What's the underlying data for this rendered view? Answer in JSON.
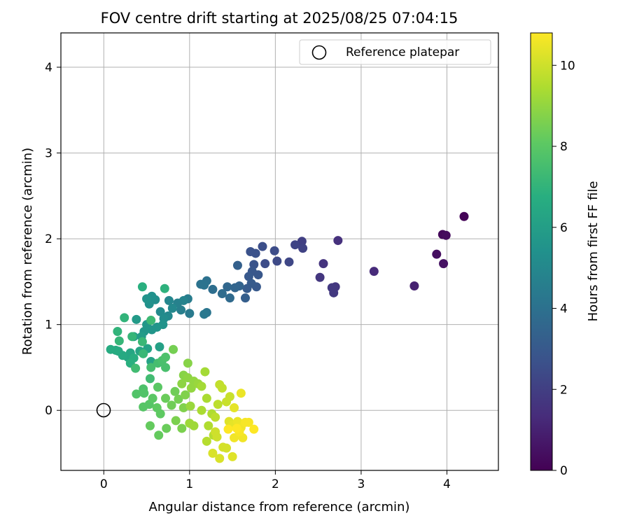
{
  "chart_data": {
    "type": "scatter",
    "title": "FOV centre drift starting at 2025/08/25 07:04:15",
    "xlabel": "Angular distance from reference (arcmin)",
    "ylabel": "Rotation from reference (arcmin)",
    "xlim": [
      -0.5,
      4.6
    ],
    "ylim": [
      -0.7,
      4.4
    ],
    "xticks": [
      "0",
      "1",
      "2",
      "3",
      "4"
    ],
    "yticks": [
      "0",
      "1",
      "2",
      "3",
      "4"
    ],
    "grid": true,
    "legend": {
      "placement": "top-right",
      "entries": [
        "Reference platepar"
      ]
    },
    "reference_point": {
      "x": 0,
      "y": 0,
      "marker": "open-circle"
    },
    "colorbar": {
      "label": "Hours from first FF file",
      "colormap": "viridis",
      "range": [
        0,
        10.8
      ],
      "ticks": [
        "0",
        "2",
        "4",
        "6",
        "8",
        "10"
      ]
    },
    "points": [
      {
        "x": 4.2,
        "y": 2.26,
        "c": 0.1
      },
      {
        "x": 3.95,
        "y": 2.05,
        "c": 0.2
      },
      {
        "x": 3.99,
        "y": 2.04,
        "c": 0.3
      },
      {
        "x": 3.88,
        "y": 1.82,
        "c": 0.4
      },
      {
        "x": 3.96,
        "y": 1.71,
        "c": 0.5
      },
      {
        "x": 3.62,
        "y": 1.45,
        "c": 1.0
      },
      {
        "x": 3.15,
        "y": 1.62,
        "c": 1.3
      },
      {
        "x": 2.73,
        "y": 1.98,
        "c": 1.5
      },
      {
        "x": 2.56,
        "y": 1.71,
        "c": 1.6
      },
      {
        "x": 2.52,
        "y": 1.55,
        "c": 1.7
      },
      {
        "x": 2.7,
        "y": 1.44,
        "c": 1.7
      },
      {
        "x": 2.66,
        "y": 1.43,
        "c": 1.8
      },
      {
        "x": 2.68,
        "y": 1.37,
        "c": 1.8
      },
      {
        "x": 2.31,
        "y": 1.97,
        "c": 2.0
      },
      {
        "x": 2.32,
        "y": 1.89,
        "c": 2.1
      },
      {
        "x": 2.23,
        "y": 1.93,
        "c": 2.2
      },
      {
        "x": 2.16,
        "y": 1.73,
        "c": 2.3
      },
      {
        "x": 2.02,
        "y": 1.74,
        "c": 2.4
      },
      {
        "x": 1.99,
        "y": 1.86,
        "c": 2.5
      },
      {
        "x": 1.88,
        "y": 1.71,
        "c": 2.5
      },
      {
        "x": 1.85,
        "y": 1.91,
        "c": 2.6
      },
      {
        "x": 1.77,
        "y": 1.83,
        "c": 2.7
      },
      {
        "x": 1.71,
        "y": 1.85,
        "c": 2.7
      },
      {
        "x": 1.75,
        "y": 1.7,
        "c": 2.8
      },
      {
        "x": 1.8,
        "y": 1.58,
        "c": 2.9
      },
      {
        "x": 1.73,
        "y": 1.62,
        "c": 2.9
      },
      {
        "x": 1.69,
        "y": 1.56,
        "c": 3.0
      },
      {
        "x": 1.78,
        "y": 1.44,
        "c": 3.0
      },
      {
        "x": 1.72,
        "y": 1.48,
        "c": 3.1
      },
      {
        "x": 1.67,
        "y": 1.42,
        "c": 3.1
      },
      {
        "x": 1.65,
        "y": 1.31,
        "c": 3.2
      },
      {
        "x": 1.56,
        "y": 1.69,
        "c": 3.3
      },
      {
        "x": 1.58,
        "y": 1.45,
        "c": 3.4
      },
      {
        "x": 1.53,
        "y": 1.43,
        "c": 3.5
      },
      {
        "x": 1.44,
        "y": 1.44,
        "c": 3.6
      },
      {
        "x": 1.47,
        "y": 1.31,
        "c": 3.7
      },
      {
        "x": 1.38,
        "y": 1.36,
        "c": 3.8
      },
      {
        "x": 1.27,
        "y": 1.41,
        "c": 3.9
      },
      {
        "x": 1.2,
        "y": 1.51,
        "c": 4.0
      },
      {
        "x": 1.13,
        "y": 1.47,
        "c": 4.1
      },
      {
        "x": 1.17,
        "y": 1.46,
        "c": 4.1
      },
      {
        "x": 1.2,
        "y": 1.14,
        "c": 4.2
      },
      {
        "x": 1.17,
        "y": 1.12,
        "c": 4.3
      },
      {
        "x": 1.0,
        "y": 1.13,
        "c": 4.4
      },
      {
        "x": 0.98,
        "y": 1.3,
        "c": 4.5
      },
      {
        "x": 0.9,
        "y": 1.17,
        "c": 4.6
      },
      {
        "x": 0.86,
        "y": 1.25,
        "c": 4.7
      },
      {
        "x": 0.93,
        "y": 1.28,
        "c": 4.8
      },
      {
        "x": 0.76,
        "y": 1.28,
        "c": 4.9
      },
      {
        "x": 0.8,
        "y": 1.19,
        "c": 5.0
      },
      {
        "x": 0.75,
        "y": 1.1,
        "c": 5.0
      },
      {
        "x": 0.66,
        "y": 1.15,
        "c": 5.1
      },
      {
        "x": 0.7,
        "y": 1.07,
        "c": 5.2
      },
      {
        "x": 0.6,
        "y": 1.29,
        "c": 5.3
      },
      {
        "x": 0.53,
        "y": 1.24,
        "c": 5.4
      },
      {
        "x": 0.56,
        "y": 1.33,
        "c": 5.4
      },
      {
        "x": 0.5,
        "y": 1.3,
        "c": 5.5
      },
      {
        "x": 0.69,
        "y": 1.0,
        "c": 5.5
      },
      {
        "x": 0.62,
        "y": 0.97,
        "c": 5.6
      },
      {
        "x": 0.56,
        "y": 0.94,
        "c": 5.6
      },
      {
        "x": 0.5,
        "y": 1.0,
        "c": 5.7
      },
      {
        "x": 0.47,
        "y": 0.92,
        "c": 5.7
      },
      {
        "x": 0.38,
        "y": 1.06,
        "c": 5.8
      },
      {
        "x": 0.44,
        "y": 0.86,
        "c": 5.9
      },
      {
        "x": 0.35,
        "y": 0.86,
        "c": 6.0
      },
      {
        "x": 0.65,
        "y": 0.74,
        "c": 6.1
      },
      {
        "x": 0.55,
        "y": 0.57,
        "c": 6.2
      },
      {
        "x": 0.51,
        "y": 0.72,
        "c": 6.2
      },
      {
        "x": 0.42,
        "y": 0.69,
        "c": 6.3
      },
      {
        "x": 0.31,
        "y": 0.67,
        "c": 6.4
      },
      {
        "x": 0.28,
        "y": 0.62,
        "c": 6.4
      },
      {
        "x": 0.22,
        "y": 0.64,
        "c": 6.5
      },
      {
        "x": 0.17,
        "y": 0.69,
        "c": 6.5
      },
      {
        "x": 0.14,
        "y": 0.7,
        "c": 6.6
      },
      {
        "x": 0.08,
        "y": 0.71,
        "c": 6.6
      },
      {
        "x": 0.35,
        "y": 0.61,
        "c": 6.7
      },
      {
        "x": 0.31,
        "y": 0.55,
        "c": 6.8
      },
      {
        "x": 0.45,
        "y": 1.44,
        "c": 6.8
      },
      {
        "x": 0.71,
        "y": 1.42,
        "c": 6.9
      },
      {
        "x": 0.24,
        "y": 1.08,
        "c": 7.0
      },
      {
        "x": 0.16,
        "y": 0.92,
        "c": 7.0
      },
      {
        "x": 0.18,
        "y": 0.81,
        "c": 7.1
      },
      {
        "x": 0.33,
        "y": 0.86,
        "c": 7.1
      },
      {
        "x": 0.45,
        "y": 0.8,
        "c": 7.2
      },
      {
        "x": 0.46,
        "y": 0.66,
        "c": 7.2
      },
      {
        "x": 0.55,
        "y": 1.05,
        "c": 7.3
      },
      {
        "x": 0.37,
        "y": 0.49,
        "c": 7.4
      },
      {
        "x": 0.54,
        "y": 0.37,
        "c": 7.4
      },
      {
        "x": 0.55,
        "y": 0.5,
        "c": 7.5
      },
      {
        "x": 0.63,
        "y": 0.55,
        "c": 7.5
      },
      {
        "x": 0.68,
        "y": 0.58,
        "c": 7.6
      },
      {
        "x": 0.72,
        "y": 0.5,
        "c": 7.6
      },
      {
        "x": 0.72,
        "y": 0.62,
        "c": 7.7
      },
      {
        "x": 0.46,
        "y": 0.25,
        "c": 7.7
      },
      {
        "x": 0.38,
        "y": 0.19,
        "c": 7.8
      },
      {
        "x": 0.47,
        "y": 0.2,
        "c": 7.8
      },
      {
        "x": 0.46,
        "y": 0.04,
        "c": 7.9
      },
      {
        "x": 0.53,
        "y": 0.07,
        "c": 7.9
      },
      {
        "x": 0.63,
        "y": 0.27,
        "c": 8.0
      },
      {
        "x": 0.57,
        "y": 0.14,
        "c": 8.0
      },
      {
        "x": 0.62,
        "y": 0.03,
        "c": 8.1
      },
      {
        "x": 0.66,
        "y": -0.04,
        "c": 8.1
      },
      {
        "x": 0.54,
        "y": -0.18,
        "c": 8.2
      },
      {
        "x": 0.64,
        "y": -0.29,
        "c": 8.2
      },
      {
        "x": 0.73,
        "y": -0.21,
        "c": 8.3
      },
      {
        "x": 0.72,
        "y": 0.14,
        "c": 8.3
      },
      {
        "x": 0.79,
        "y": 0.06,
        "c": 8.4
      },
      {
        "x": 0.83,
        "y": 0.22,
        "c": 8.4
      },
      {
        "x": 0.87,
        "y": 0.13,
        "c": 8.5
      },
      {
        "x": 0.81,
        "y": 0.71,
        "c": 8.5
      },
      {
        "x": 0.84,
        "y": -0.12,
        "c": 8.6
      },
      {
        "x": 0.91,
        "y": -0.21,
        "c": 8.6
      },
      {
        "x": 0.93,
        "y": 0.03,
        "c": 8.7
      },
      {
        "x": 0.95,
        "y": 0.18,
        "c": 8.7
      },
      {
        "x": 0.98,
        "y": 0.55,
        "c": 8.8
      },
      {
        "x": 0.93,
        "y": 0.41,
        "c": 8.8
      },
      {
        "x": 0.91,
        "y": 0.31,
        "c": 8.9
      },
      {
        "x": 0.98,
        "y": 0.38,
        "c": 8.9
      },
      {
        "x": 1.02,
        "y": 0.26,
        "c": 9.0
      },
      {
        "x": 1.05,
        "y": 0.34,
        "c": 9.0
      },
      {
        "x": 1.1,
        "y": 0.31,
        "c": 9.1
      },
      {
        "x": 1.01,
        "y": 0.05,
        "c": 9.1
      },
      {
        "x": 1.0,
        "y": -0.15,
        "c": 9.2
      },
      {
        "x": 1.05,
        "y": -0.18,
        "c": 9.2
      },
      {
        "x": 1.14,
        "y": 0.28,
        "c": 9.3
      },
      {
        "x": 1.18,
        "y": 0.45,
        "c": 9.3
      },
      {
        "x": 1.14,
        "y": 0.0,
        "c": 9.4
      },
      {
        "x": 1.2,
        "y": 0.14,
        "c": 9.4
      },
      {
        "x": 1.22,
        "y": -0.18,
        "c": 9.5
      },
      {
        "x": 1.26,
        "y": -0.04,
        "c": 9.5
      },
      {
        "x": 1.2,
        "y": -0.36,
        "c": 9.6
      },
      {
        "x": 1.28,
        "y": -0.29,
        "c": 9.6
      },
      {
        "x": 1.3,
        "y": -0.08,
        "c": 9.7
      },
      {
        "x": 1.33,
        "y": 0.07,
        "c": 9.7
      },
      {
        "x": 1.35,
        "y": 0.3,
        "c": 9.8
      },
      {
        "x": 1.38,
        "y": 0.26,
        "c": 9.8
      },
      {
        "x": 1.43,
        "y": 0.1,
        "c": 9.9
      },
      {
        "x": 1.47,
        "y": 0.16,
        "c": 9.9
      },
      {
        "x": 1.3,
        "y": -0.25,
        "c": 10.0
      },
      {
        "x": 1.32,
        "y": -0.31,
        "c": 10.0
      },
      {
        "x": 1.39,
        "y": -0.43,
        "c": 10.1
      },
      {
        "x": 1.43,
        "y": -0.44,
        "c": 10.1
      },
      {
        "x": 1.35,
        "y": -0.56,
        "c": 10.2
      },
      {
        "x": 1.27,
        "y": -0.5,
        "c": 10.2
      },
      {
        "x": 1.5,
        "y": -0.54,
        "c": 10.3
      },
      {
        "x": 1.46,
        "y": -0.13,
        "c": 10.3
      },
      {
        "x": 1.5,
        "y": -0.17,
        "c": 10.4
      },
      {
        "x": 1.52,
        "y": 0.03,
        "c": 10.4
      },
      {
        "x": 1.6,
        "y": 0.2,
        "c": 10.5
      },
      {
        "x": 1.56,
        "y": -0.13,
        "c": 10.5
      },
      {
        "x": 1.6,
        "y": -0.2,
        "c": 10.6
      },
      {
        "x": 1.62,
        "y": -0.32,
        "c": 10.6
      },
      {
        "x": 1.52,
        "y": -0.32,
        "c": 10.6
      },
      {
        "x": 1.65,
        "y": -0.14,
        "c": 10.7
      },
      {
        "x": 1.69,
        "y": -0.14,
        "c": 10.7
      },
      {
        "x": 1.58,
        "y": -0.25,
        "c": 10.7
      },
      {
        "x": 1.75,
        "y": -0.22,
        "c": 10.8
      },
      {
        "x": 1.55,
        "y": -0.21,
        "c": 10.8
      },
      {
        "x": 1.45,
        "y": -0.22,
        "c": 10.8
      }
    ]
  }
}
